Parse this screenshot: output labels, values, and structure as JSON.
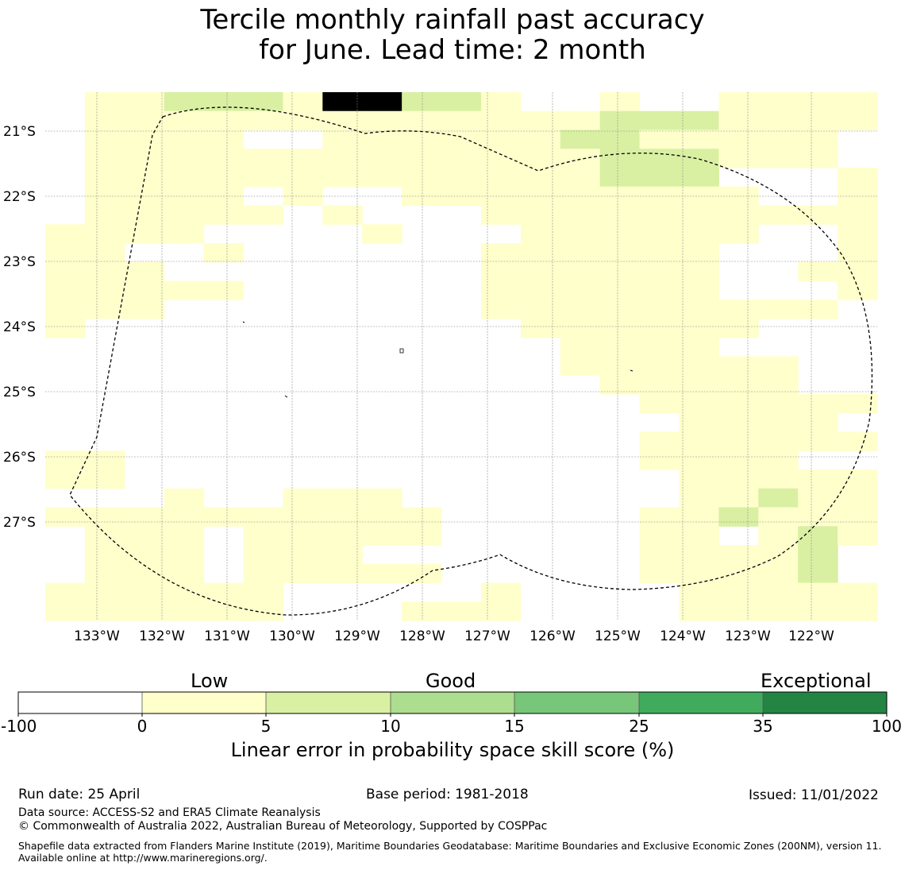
{
  "title": {
    "line1": "Tercile monthly rainfall past accuracy",
    "line2": "for June. Lead time: 2 month"
  },
  "map": {
    "lat_labels": [
      "21°S",
      "22°S",
      "23°S",
      "24°S",
      "25°S",
      "26°S",
      "27°S"
    ],
    "lon_labels": [
      "133°W",
      "132°W",
      "131°W",
      "130°W",
      "129°W",
      "128°W",
      "127°W",
      "126°W",
      "125°W",
      "124°W",
      "123°W",
      "122°W"
    ],
    "colors": {
      "white": "#ffffff",
      "low": "#ffffcc",
      "mid": "#d9f0a3"
    },
    "grid_rows": [
      "011222133221001001111",
      "011111111111112221111",
      "011110011111122111110",
      "011111111111112221110",
      "011111111111112220001",
      "011110100111111111001",
      "011111010001111111111",
      "111100001000111111001",
      "110010000001111110001",
      "111000000001111110011",
      "111110000001111110001",
      "111000000001111111110",
      "100000000000111111000",
      "000000000000011110000",
      "000000000000011111100",
      "000000000000001111100",
      "000000000000000111111",
      "000000000000000011110",
      "000000000000000111111",
      "110000000000000111100",
      "110000000000000011111",
      "000100111000000011211",
      "111111111100000112111",
      "011101111100000110121",
      "011101110000000111120",
      "011101111100000111120",
      "111111000001000011111",
      "111111000111000011111"
    ]
  },
  "colorbar": {
    "categories": [
      "Low",
      "Good",
      "Exceptional"
    ],
    "ticks": [
      "-100",
      "0",
      "5",
      "10",
      "15",
      "25",
      "35",
      "100"
    ],
    "colors": [
      "#ffffff",
      "#ffffcc",
      "#d9f0a3",
      "#addd8e",
      "#78c679",
      "#41ab5d",
      "#238443"
    ],
    "label": "Linear error in probability space skill score (%)"
  },
  "footer": {
    "run_date": "Run date: 25 April",
    "base_period": "Base period: 1981-2018",
    "issued": "Issued: 11/01/2022",
    "data_source": "Data source: ACCESS-S2 and ERA5 Climate Reanalysis",
    "copyright": "© Commonwealth of Australia 2022, Australian Bureau of Meteorology, Supported by COSPPac",
    "shapefile": "Shapefile data extracted from Flanders Marine Institute (2019), Maritime Boundaries Geodatabase: Maritime Boundaries and Exclusive Economic Zones (200NM), version 11. Available online at http://www.marineregions.org/."
  }
}
